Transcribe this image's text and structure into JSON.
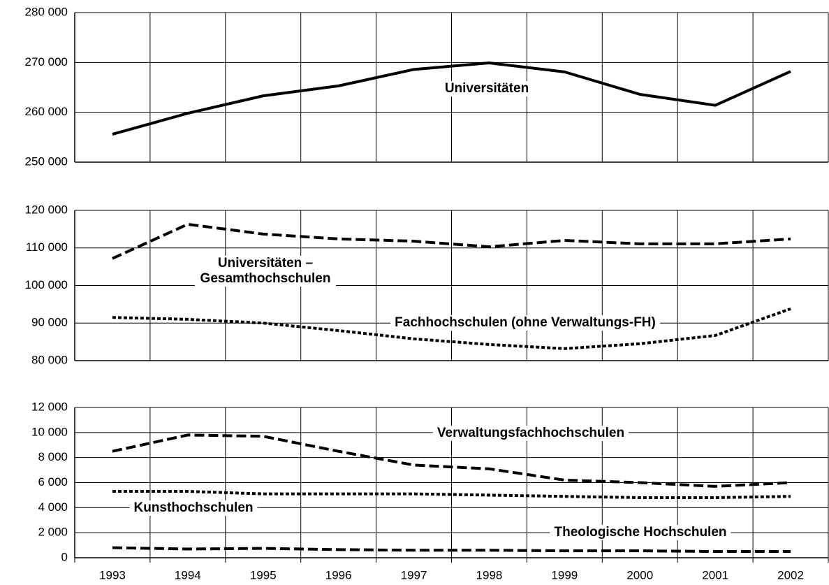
{
  "chart_data": [
    {
      "type": "line",
      "ylim": [
        250000,
        280000
      ],
      "yticks": [
        {
          "value": 250000,
          "label": "250 000"
        },
        {
          "value": 260000,
          "label": "260 000"
        },
        {
          "value": 270000,
          "label": "270 000"
        },
        {
          "value": 280000,
          "label": "280 000"
        }
      ],
      "grid": true,
      "series": [
        {
          "name": "Universitäten",
          "color": "#000000",
          "style": "solid",
          "values": [
            255600,
            259800,
            263300,
            265300,
            268600,
            269900,
            268100,
            263600,
            261400,
            268200
          ]
        }
      ]
    },
    {
      "type": "line",
      "ylim": [
        80000,
        120000
      ],
      "yticks": [
        {
          "value": 80000,
          "label": "80 000"
        },
        {
          "value": 90000,
          "label": "90 000"
        },
        {
          "value": 100000,
          "label": "100 000"
        },
        {
          "value": 110000,
          "label": "110 000"
        },
        {
          "value": 120000,
          "label": "120 000"
        }
      ],
      "grid": true,
      "series": [
        {
          "name": "Universitäten – Gesamthochschulen",
          "color": "#000000",
          "style": "dashed",
          "values": [
            107200,
            116300,
            113700,
            112400,
            111800,
            110300,
            112000,
            111100,
            111100,
            112400
          ]
        },
        {
          "name": "Fachhochschulen (ohne Verwaltungs-FH)",
          "color": "#000000",
          "style": "dotted",
          "values": [
            91500,
            91000,
            90000,
            88000,
            85800,
            84300,
            83200,
            84500,
            86700,
            93800
          ]
        }
      ]
    },
    {
      "type": "line",
      "categories": [
        "1993",
        "1994",
        "1995",
        "1996",
        "1997",
        "1998",
        "1999",
        "2000",
        "2001",
        "2002"
      ],
      "ylim": [
        0,
        12000
      ],
      "yticks": [
        0,
        {
          "value": 2000,
          "label": "2 000"
        },
        {
          "value": 4000,
          "label": "4 000"
        },
        {
          "value": 6000,
          "label": "6 000"
        },
        {
          "value": 8000,
          "label": "8 000"
        },
        {
          "value": 10000,
          "label": "10 000"
        },
        {
          "value": 12000,
          "label": "12 000"
        }
      ],
      "grid": true,
      "series": [
        {
          "name": "Verwaltungsfachhochschulen",
          "color": "#000000",
          "style": "dashed",
          "values": [
            8500,
            9800,
            9700,
            8500,
            7400,
            7100,
            6200,
            6000,
            5700,
            6000
          ]
        },
        {
          "name": "Kunsthochschulen",
          "color": "#000000",
          "style": "dotted",
          "values": [
            5300,
            5300,
            5100,
            5100,
            5100,
            5000,
            4900,
            4800,
            4800,
            4900
          ]
        },
        {
          "name": "Theologische Hochschulen",
          "color": "#000000",
          "style": "dashed",
          "values": [
            800,
            700,
            750,
            650,
            600,
            600,
            550,
            550,
            500,
            500
          ]
        }
      ]
    }
  ]
}
